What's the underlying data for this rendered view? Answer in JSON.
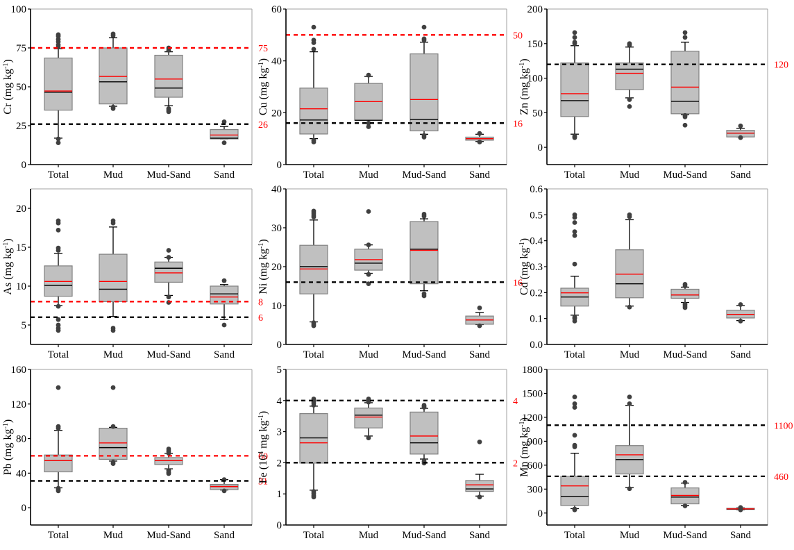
{
  "chart_data": [
    {
      "type": "box",
      "element": "Cr",
      "ylabel": "Cr (mg kg-1)",
      "ylabel_base": "Cr (mg kg",
      "ylabel_sup": "-1",
      "ylim": [
        0,
        100
      ],
      "yticks": [
        0,
        25,
        50,
        75,
        100
      ],
      "ytick_labels": [
        "0",
        "25",
        "50",
        "75",
        "100"
      ],
      "categories": [
        "Total",
        "Mud",
        "Mud-Sand",
        "Sand"
      ],
      "boxes": [
        {
          "q1": 35,
          "q3": 68.5,
          "median": 46.5,
          "mean": 47.3,
          "whisker_low": 17,
          "whisker_high": 74.5,
          "outliers": [
            14,
            16.5,
            75.5,
            77,
            79,
            80.5,
            82.5,
            83.5
          ]
        },
        {
          "q1": 39,
          "q3": 75,
          "median": 53.2,
          "mean": 56.7,
          "whisker_low": 37.5,
          "whisker_high": 81.5,
          "outliers": [
            36,
            37,
            83,
            84
          ]
        },
        {
          "q1": 43.3,
          "q3": 70.3,
          "median": 49.2,
          "mean": 55,
          "whisker_low": 37.8,
          "whisker_high": 72.5,
          "outliers": [
            34,
            35,
            36,
            73.5,
            75
          ]
        },
        {
          "q1": 16.5,
          "q3": 22.5,
          "median": 17,
          "mean": 19,
          "whisker_low": 16.5,
          "whisker_high": 24.5,
          "outliers": [
            14,
            27.5
          ]
        }
      ],
      "reference_lines": [
        {
          "value": 75,
          "label": "75",
          "color": "#ff0000"
        },
        {
          "value": 26,
          "label": "26",
          "color": "#000000"
        }
      ]
    },
    {
      "type": "box",
      "element": "Cu",
      "ylabel": "Cu (mg kg-1)",
      "ylabel_base": "Cu (mg kg",
      "ylabel_sup": "-1",
      "ylim": [
        0,
        60
      ],
      "yticks": [
        0,
        20,
        40,
        60
      ],
      "ytick_labels": [
        "0",
        "20",
        "40",
        "60"
      ],
      "categories": [
        "Total",
        "Mud",
        "Mud-Sand",
        "Sand"
      ],
      "boxes": [
        {
          "q1": 11.8,
          "q3": 29.5,
          "median": 17.2,
          "mean": 21.5,
          "whisker_low": 10,
          "whisker_high": 43.5,
          "outliers": [
            8.7,
            9.3,
            44.5,
            47,
            48,
            53
          ]
        },
        {
          "q1": 17.1,
          "q3": 31.3,
          "median": 17.1,
          "mean": 24.3,
          "whisker_low": 16.2,
          "whisker_high": 34,
          "outliers": [
            14.6,
            16,
            34.5
          ]
        },
        {
          "q1": 13,
          "q3": 42.7,
          "median": 17.4,
          "mean": 25.1,
          "whisker_low": 11.7,
          "whisker_high": 47.2,
          "outliers": [
            10.6,
            11.2,
            48,
            48.5,
            53
          ]
        },
        {
          "q1": 9.4,
          "q3": 10.6,
          "median": 10,
          "mean": 10,
          "whisker_low": 8.9,
          "whisker_high": 11.7,
          "outliers": [
            8.7,
            12
          ]
        }
      ],
      "reference_lines": [
        {
          "value": 50,
          "label": "50",
          "color": "#ff0000"
        },
        {
          "value": 16,
          "label": "16",
          "color": "#000000"
        }
      ]
    },
    {
      "type": "box",
      "element": "Zn",
      "ylabel": "Zn (mg kg-1)",
      "ylabel_base": "Zn (mg kg",
      "ylabel_sup": "-1",
      "ylim": [
        -25,
        200
      ],
      "yticks": [
        0,
        50,
        100,
        150,
        200
      ],
      "ytick_labels": [
        "0",
        "50",
        "100",
        "150",
        "200"
      ],
      "categories": [
        "Total",
        "Mud",
        "Mud-Sand",
        "Sand"
      ],
      "boxes": [
        {
          "q1": 44.5,
          "q3": 122,
          "median": 67.5,
          "mean": 77.5,
          "whisker_low": 19,
          "whisker_high": 147,
          "outliers": [
            14,
            16,
            150,
            152,
            159,
            166
          ]
        },
        {
          "q1": 83.5,
          "q3": 122,
          "median": 113,
          "mean": 107,
          "whisker_low": 71.5,
          "whisker_high": 145,
          "outliers": [
            59,
            69,
            148,
            150
          ]
        },
        {
          "q1": 48.5,
          "q3": 139,
          "median": 66.5,
          "mean": 87,
          "whisker_low": 47,
          "whisker_high": 152,
          "outliers": [
            32,
            44,
            46,
            159,
            166
          ]
        },
        {
          "q1": 15,
          "q3": 24.5,
          "median": 20.5,
          "mean": 20.5,
          "whisker_low": 15,
          "whisker_high": 27.5,
          "outliers": [
            14,
            31
          ]
        }
      ],
      "reference_lines": [
        {
          "value": 120,
          "label": "120",
          "color": "#000000"
        }
      ]
    },
    {
      "type": "box",
      "element": "As",
      "ylabel": "As (mg kg-1)",
      "ylabel_base": "As (mg kg",
      "ylabel_sup": "-1",
      "ylim": [
        2.5,
        22.5
      ],
      "yticks": [
        5,
        10,
        15,
        20
      ],
      "ytick_labels": [
        "5",
        "10",
        "15",
        "20"
      ],
      "categories": [
        "Total",
        "Mud",
        "Mud-Sand",
        "Sand"
      ],
      "boxes": [
        {
          "q1": 8.7,
          "q3": 12.6,
          "median": 10.1,
          "mean": 10.6,
          "whisker_low": 7.5,
          "whisker_high": 14.2,
          "outliers": [
            4.3,
            4.6,
            5,
            5.7,
            7.4,
            14.6,
            14.9,
            17.2,
            18.1,
            18.4
          ]
        },
        {
          "q1": 8,
          "q3": 14.1,
          "median": 9.6,
          "mean": 10.6,
          "whisker_low": 6.1,
          "whisker_high": 17.6,
          "outliers": [
            4.3,
            4.6,
            18.1,
            18.4
          ]
        },
        {
          "q1": 10.5,
          "q3": 13.1,
          "median": 12.3,
          "mean": 11.7,
          "whisker_low": 8.8,
          "whisker_high": 13.7,
          "outliers": [
            7.9,
            8.6,
            13.7,
            14.6
          ]
        },
        {
          "q1": 7.7,
          "q3": 10,
          "median": 9,
          "mean": 8.6,
          "whisker_low": 5.7,
          "whisker_high": 10.2,
          "outliers": [
            5,
            10.7
          ]
        }
      ],
      "reference_lines": [
        {
          "value": 8,
          "label": "8",
          "color": "#ff0000"
        },
        {
          "value": 6,
          "label": "6",
          "color": "#000000"
        }
      ]
    },
    {
      "type": "box",
      "element": "Ni",
      "ylabel": "Ni (mg kg-1)",
      "ylabel_base": "Ni (mg kg",
      "ylabel_sup": "-1",
      "ylim": [
        0,
        40
      ],
      "yticks": [
        0,
        10,
        20,
        30,
        40
      ],
      "ytick_labels": [
        "0",
        "10",
        "20",
        "30",
        "40"
      ],
      "categories": [
        "Total",
        "Mud",
        "Mud-Sand",
        "Sand"
      ],
      "boxes": [
        {
          "q1": 13,
          "q3": 25.5,
          "median": 20,
          "mean": 19.4,
          "whisker_low": 5.8,
          "whisker_high": 32,
          "outliers": [
            4.8,
            5.2,
            5.6,
            32.8,
            33.3,
            33.8,
            34.3
          ]
        },
        {
          "q1": 19.1,
          "q3": 24.5,
          "median": 20.9,
          "mean": 21.8,
          "whisker_low": 18.3,
          "whisker_high": 25.6,
          "outliers": [
            15.6,
            18,
            25.6,
            34.2
          ]
        },
        {
          "q1": 15.6,
          "q3": 31.6,
          "median": 24.5,
          "mean": 24.2,
          "whisker_low": 13.8,
          "whisker_high": 32.3,
          "outliers": [
            12.5,
            13,
            33,
            33.5
          ]
        },
        {
          "q1": 5.2,
          "q3": 7.3,
          "median": 6.3,
          "mean": 6.3,
          "whisker_low": 5.1,
          "whisker_high": 8.2,
          "outliers": [
            4.8,
            9.4
          ]
        }
      ],
      "reference_lines": [
        {
          "value": 16,
          "label": "16",
          "color": "#000000"
        }
      ]
    },
    {
      "type": "box",
      "element": "Cd",
      "ylabel": "Cd (mg kg-1)",
      "ylabel_base": "Cd (mg kg",
      "ylabel_sup": "-1",
      "ylim": [
        0,
        0.6
      ],
      "yticks": [
        0,
        0.1,
        0.2,
        0.3,
        0.4,
        0.5,
        0.6
      ],
      "ytick_labels": [
        "0.0",
        "0.1",
        "0.2",
        "0.3",
        "0.4",
        "0.5",
        "0.6"
      ],
      "categories": [
        "Total",
        "Mud",
        "Mud-Sand",
        "Sand"
      ],
      "boxes": [
        {
          "q1": 0.148,
          "q3": 0.217,
          "median": 0.183,
          "mean": 0.199,
          "whisker_low": 0.113,
          "whisker_high": 0.263,
          "outliers": [
            0.09,
            0.1,
            0.105,
            0.31,
            0.42,
            0.435,
            0.47,
            0.49,
            0.5
          ]
        },
        {
          "q1": 0.18,
          "q3": 0.365,
          "median": 0.234,
          "mean": 0.271,
          "whisker_low": 0.148,
          "whisker_high": 0.481,
          "outliers": [
            0.144,
            0.493,
            0.5
          ]
        },
        {
          "q1": 0.178,
          "q3": 0.213,
          "median": 0.191,
          "mean": 0.191,
          "whisker_low": 0.162,
          "whisker_high": 0.221,
          "outliers": [
            0.142,
            0.148,
            0.155,
            0.225,
            0.232
          ]
        },
        {
          "q1": 0.102,
          "q3": 0.132,
          "median": 0.116,
          "mean": 0.116,
          "whisker_low": 0.092,
          "whisker_high": 0.15,
          "outliers": [
            0.09,
            0.154
          ]
        }
      ],
      "reference_lines": []
    },
    {
      "type": "box",
      "element": "Pb",
      "ylabel": "Pb (mg kg-1)",
      "ylabel_base": "Pb (mg kg",
      "ylabel_sup": "-1",
      "ylim": [
        -20,
        160
      ],
      "yticks": [
        0,
        40,
        80,
        120,
        160
      ],
      "ytick_labels": [
        "0",
        "40",
        "80",
        "120",
        "160"
      ],
      "categories": [
        "Total",
        "Mud",
        "Mud-Sand",
        "Sand"
      ],
      "boxes": [
        {
          "q1": 41.5,
          "q3": 61,
          "median": 54.5,
          "mean": 54.5,
          "whisker_low": 23,
          "whisker_high": 89.5,
          "outliers": [
            19.5,
            21,
            22.5,
            92,
            94,
            139
          ]
        },
        {
          "q1": 56,
          "q3": 92,
          "median": 69.5,
          "mean": 75,
          "whisker_low": 54,
          "whisker_high": 93,
          "outliers": [
            51,
            53,
            94,
            139
          ]
        },
        {
          "q1": 50,
          "q3": 58,
          "median": 54.5,
          "mean": 54.5,
          "whisker_low": 45,
          "whisker_high": 63,
          "outliers": [
            39.5,
            41,
            43,
            63,
            65.5,
            68
          ]
        },
        {
          "q1": 21,
          "q3": 27,
          "median": 24.5,
          "mean": 24.5,
          "whisker_low": 20.5,
          "whisker_high": 32.5,
          "outliers": [
            19.5,
            32.5
          ]
        }
      ],
      "reference_lines": [
        {
          "value": 60,
          "label": "60",
          "color": "#ff0000"
        },
        {
          "value": 31,
          "label": "31",
          "color": "#000000"
        }
      ]
    },
    {
      "type": "box",
      "element": "Fe",
      "ylabel": "Fe (10^4 mg kg-1)",
      "ylabel_base": "Fe (10",
      "ylabel_sup1": "4",
      "ylabel_mid": " mg kg",
      "ylabel_sup": "-1",
      "ylim": [
        0,
        5
      ],
      "yticks": [
        0,
        1,
        2,
        3,
        4,
        5
      ],
      "ytick_labels": [
        "0",
        "1",
        "2",
        "3",
        "4",
        "5"
      ],
      "categories": [
        "Total",
        "Mud",
        "Mud-Sand",
        "Sand"
      ],
      "boxes": [
        {
          "q1": 1.99,
          "q3": 3.58,
          "median": 2.8,
          "mean": 2.64,
          "whisker_low": 1.12,
          "whisker_high": 3.82,
          "outliers": [
            0.9,
            0.96,
            1.02,
            1.08,
            3.85,
            3.92,
            3.98,
            4.05
          ]
        },
        {
          "q1": 3.12,
          "q3": 3.76,
          "median": 3.53,
          "mean": 3.47,
          "whisker_low": 2.86,
          "whisker_high": 3.93,
          "outliers": [
            2.8,
            3.95,
            4.05
          ]
        },
        {
          "q1": 2.28,
          "q3": 3.63,
          "median": 2.64,
          "mean": 2.86,
          "whisker_low": 2.12,
          "whisker_high": 3.75,
          "outliers": [
            1.99,
            2.05,
            3.78,
            3.82,
            3.85
          ]
        },
        {
          "q1": 1.08,
          "q3": 1.43,
          "median": 1.16,
          "mean": 1.29,
          "whisker_low": 0.93,
          "whisker_high": 1.63,
          "outliers": [
            0.9,
            2.67
          ]
        }
      ],
      "reference_lines": [
        {
          "value": 4,
          "label": "4",
          "color": "#000000"
        },
        {
          "value": 2,
          "label": "2",
          "color": "#000000"
        }
      ]
    },
    {
      "type": "box",
      "element": "Mn",
      "ylabel": "Mn (mg kg-1)",
      "ylabel_base": "Mn (mg kg",
      "ylabel_sup": "-1",
      "ylim": [
        -150,
        1800
      ],
      "yticks": [
        0,
        300,
        600,
        900,
        1200,
        1500,
        1800
      ],
      "ytick_labels": [
        "0",
        "300",
        "600",
        "900",
        "1200",
        "1500",
        "1800"
      ],
      "categories": [
        "Total",
        "Mud",
        "Mud-Sand",
        "Sand"
      ],
      "boxes": [
        {
          "q1": 95,
          "q3": 460,
          "median": 210,
          "mean": 340,
          "whisker_low": 55,
          "whisker_high": 750,
          "outliers": [
            40,
            50,
            830,
            850,
            975,
            1325,
            1370,
            1455
          ]
        },
        {
          "q1": 490,
          "q3": 845,
          "median": 670,
          "mean": 730,
          "whisker_low": 320,
          "whisker_high": 1350,
          "outliers": [
            305,
            1370,
            1455
          ]
        },
        {
          "q1": 115,
          "q3": 315,
          "median": 200,
          "mean": 220,
          "whisker_low": 95,
          "whisker_high": 375,
          "outliers": [
            90,
            385
          ]
        },
        {
          "q1": 45,
          "q3": 60,
          "median": 50,
          "mean": 52,
          "whisker_low": 42,
          "whisker_high": 65,
          "outliers": [
            40,
            70
          ]
        }
      ],
      "reference_lines": [
        {
          "value": 1100,
          "label": "1100",
          "color": "#000000"
        },
        {
          "value": 460,
          "label": "460",
          "color": "#000000"
        }
      ]
    }
  ],
  "colors": {
    "box_fill": "#c0c0c0",
    "box_stroke": "#808080",
    "median": "#000000",
    "mean": "#ff0000",
    "outlier": "#404040",
    "ref_label": "#ff0000",
    "frame_top_right": "#a0a0a0"
  }
}
